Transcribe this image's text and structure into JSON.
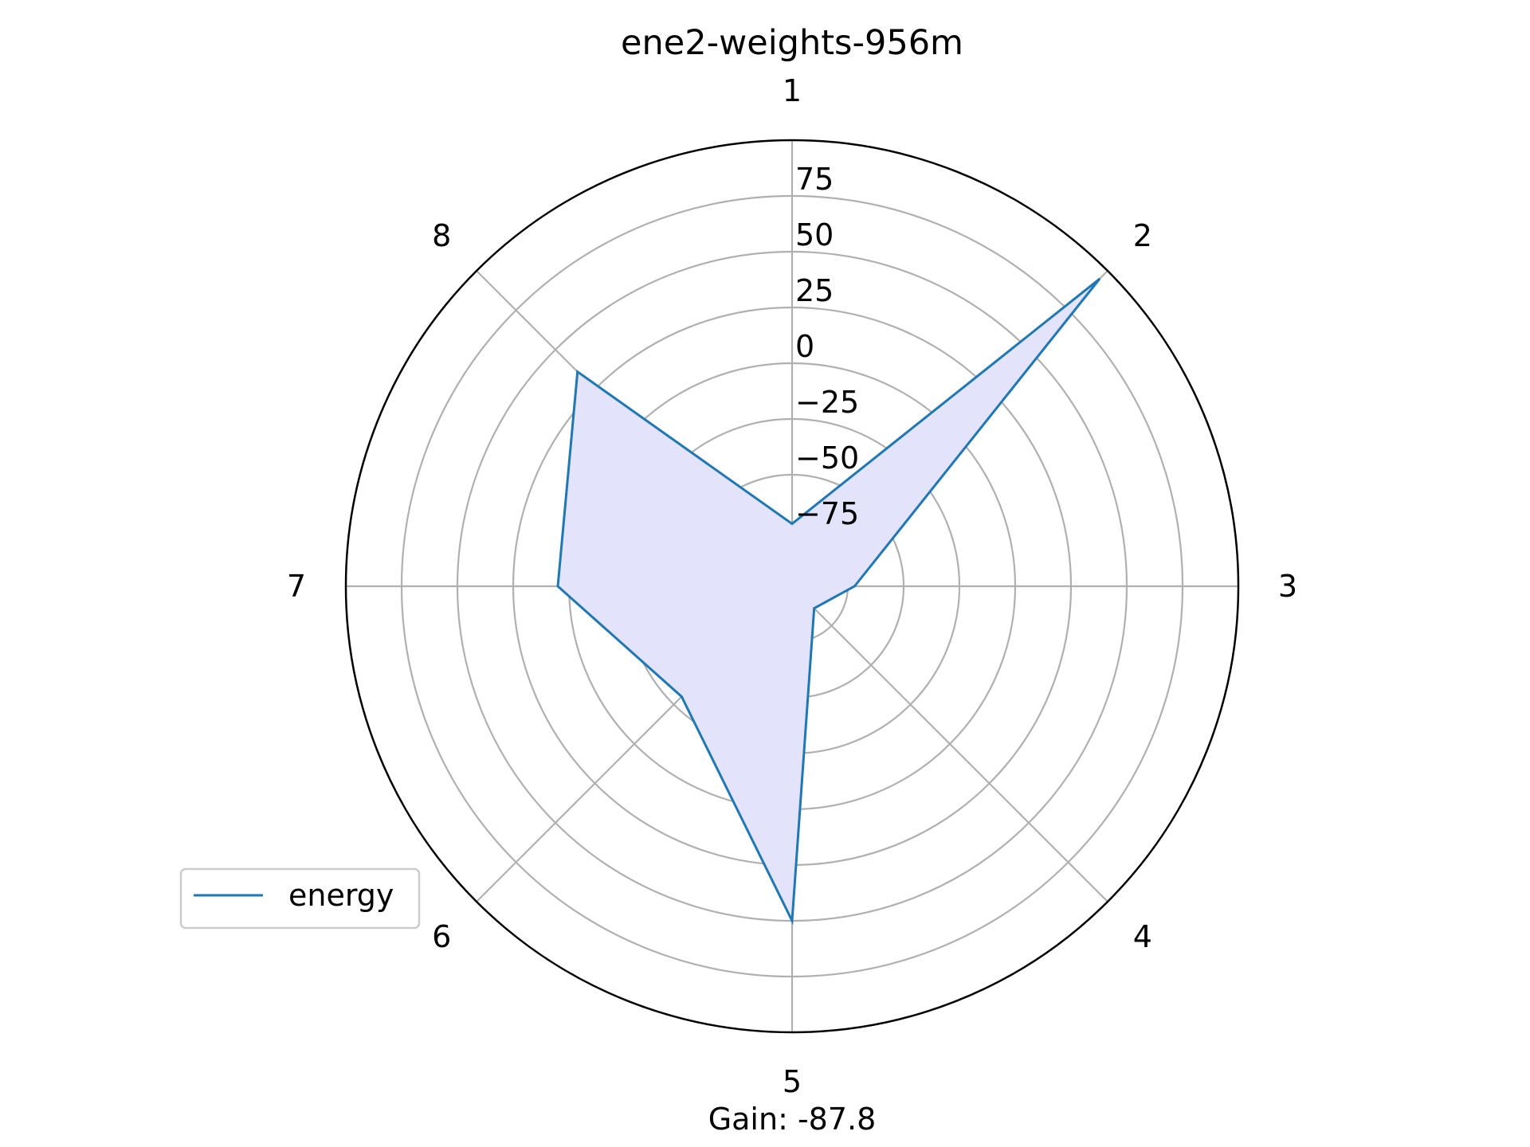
{
  "chart_data": {
    "type": "radar",
    "title": "ene2-weights-956m",
    "categories": [
      "1",
      "2",
      "3",
      "4",
      "5",
      "6",
      "7",
      "8"
    ],
    "radial_ticks": [
      "−75",
      "−50",
      "−25",
      "0",
      "25",
      "50",
      "75"
    ],
    "rlim": [
      -100,
      100
    ],
    "series": [
      {
        "name": "energy",
        "values": [
          -72,
          95,
          -72,
          -86,
          50,
          -30,
          5,
          36
        ],
        "color": "#1f77b4",
        "fill_color": "#e3e3fc"
      }
    ],
    "legend_position": "lower-left",
    "grid": true,
    "caption": "Gain: -87.8"
  }
}
